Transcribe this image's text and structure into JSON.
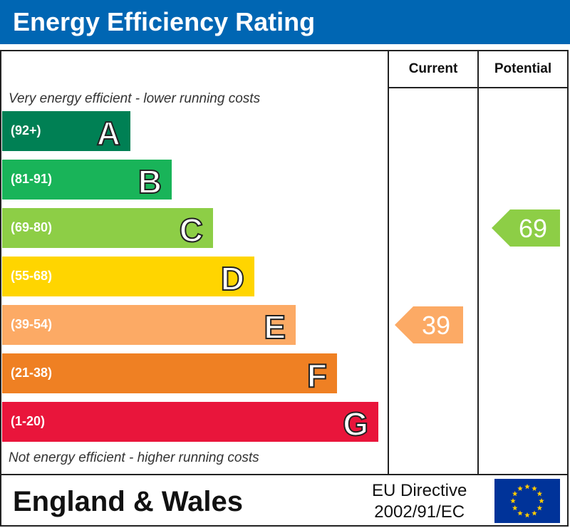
{
  "header": {
    "title": "Energy Efficiency Rating"
  },
  "columns": {
    "current": "Current",
    "potential": "Potential"
  },
  "notes": {
    "top": "Very energy efficient - lower running costs",
    "bottom": "Not energy efficient - higher running costs"
  },
  "chart_data": {
    "type": "bar",
    "title": "Energy Efficiency Rating",
    "bands": [
      {
        "letter": "A",
        "range": "(92+)",
        "color": "#008054"
      },
      {
        "letter": "B",
        "range": "(81-91)",
        "color": "#19b459"
      },
      {
        "letter": "C",
        "range": "(69-80)",
        "color": "#8dce46"
      },
      {
        "letter": "D",
        "range": "(55-68)",
        "color": "#ffd500"
      },
      {
        "letter": "E",
        "range": "(39-54)",
        "color": "#fcaa65"
      },
      {
        "letter": "F",
        "range": "(21-38)",
        "color": "#ef8023"
      },
      {
        "letter": "G",
        "range": "(1-20)",
        "color": "#e9153b"
      }
    ],
    "current": {
      "value": 39,
      "band": "E",
      "color": "#fcaa65"
    },
    "potential": {
      "value": 69,
      "band": "C",
      "color": "#8dce46"
    }
  },
  "footer": {
    "region": "England & Wales",
    "directive_line1": "EU Directive",
    "directive_line2": "2002/91/EC"
  },
  "icons": {
    "flag": "eu-flag-icon"
  }
}
